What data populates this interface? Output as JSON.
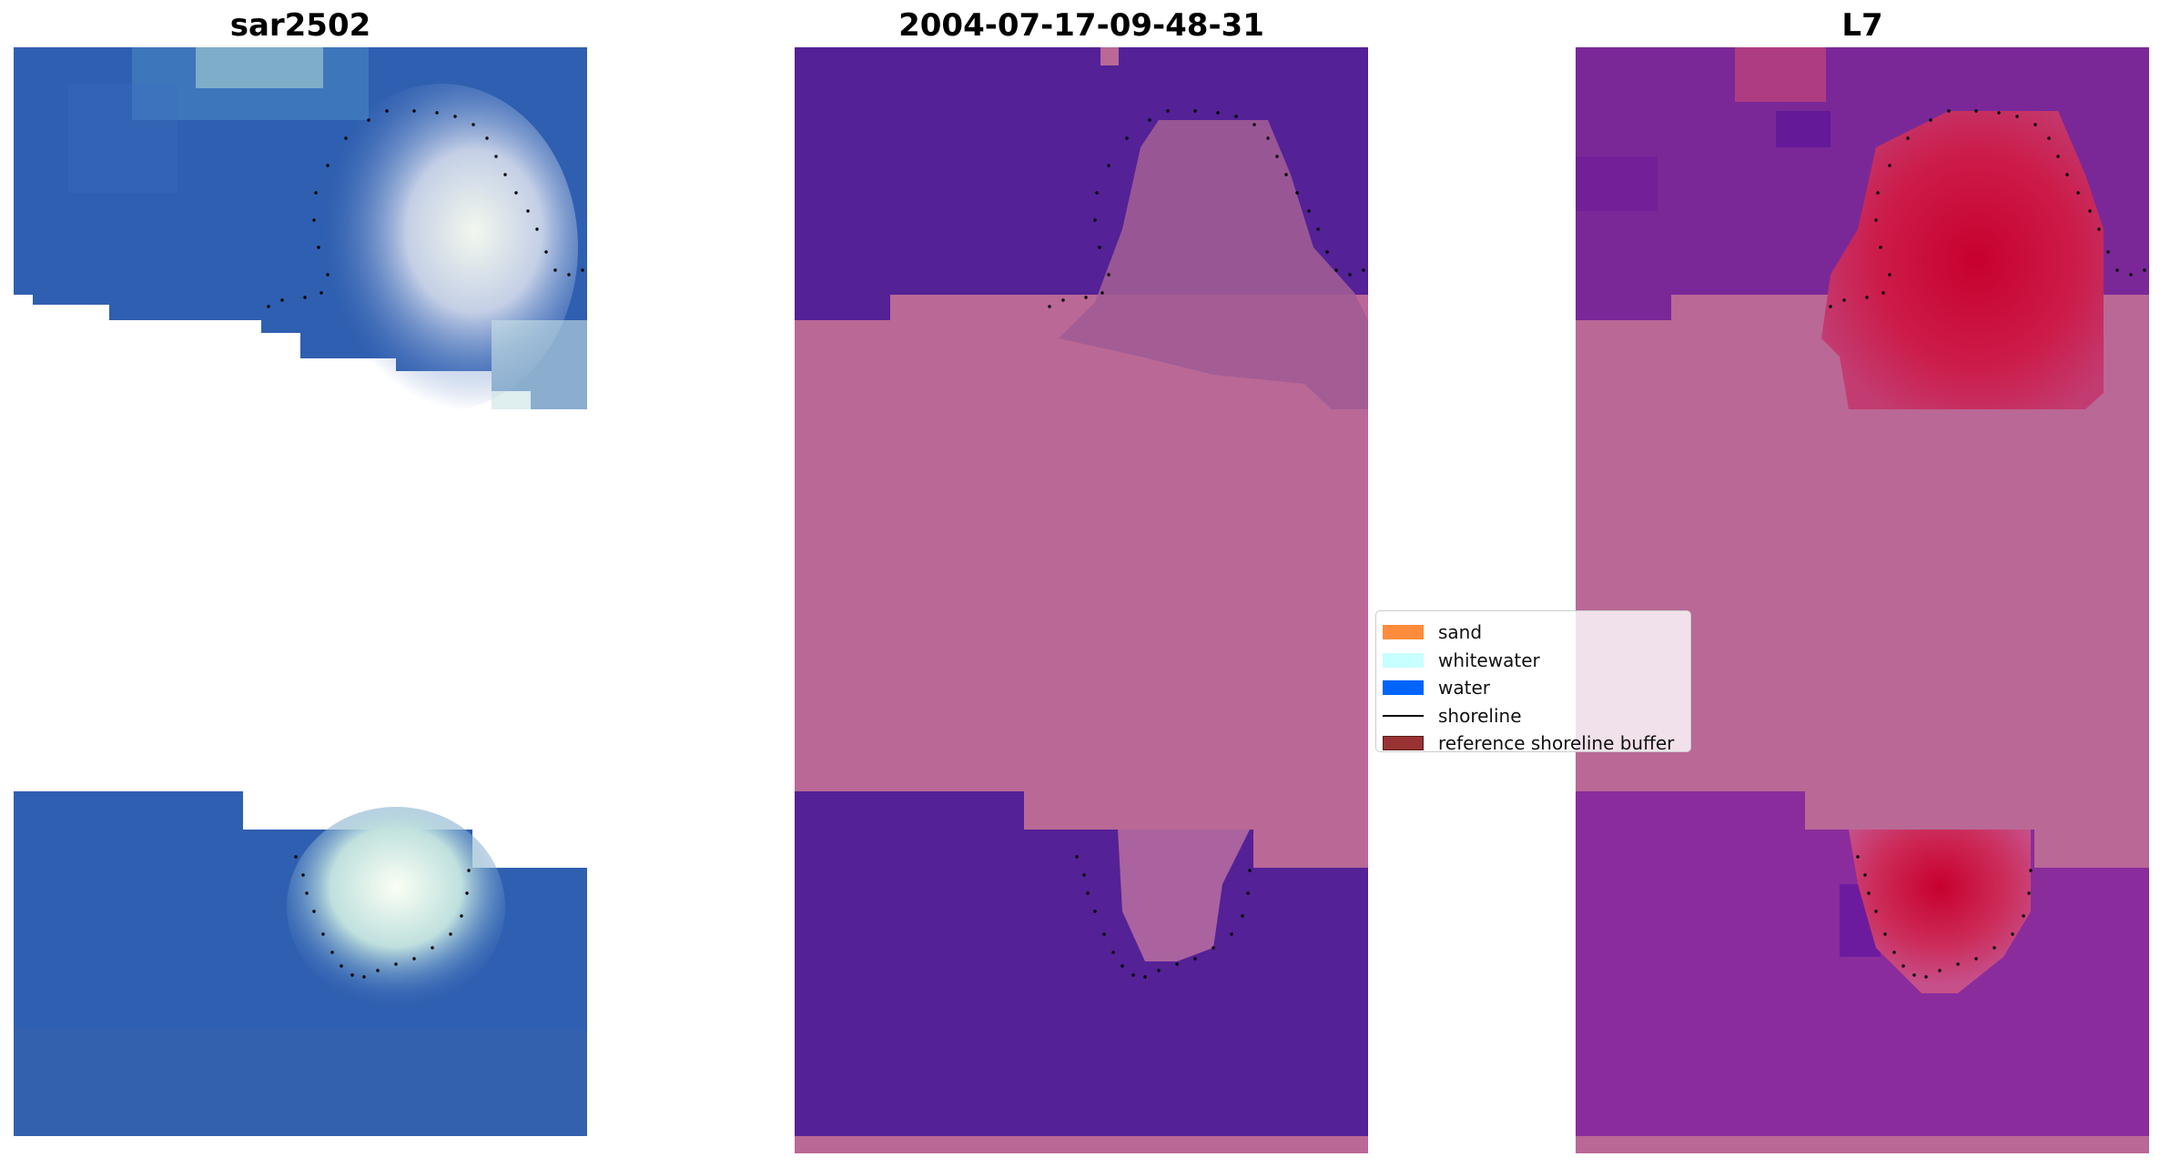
{
  "panels": [
    {
      "title": "sar2502",
      "image_type": "rgb"
    },
    {
      "title": "2004-07-17-09-48-31",
      "image_type": "classified"
    },
    {
      "title": "L7",
      "image_type": "mndwi"
    }
  ],
  "legend": {
    "items": [
      {
        "label": "sand",
        "color": "#ff8c3c",
        "kind": "patch"
      },
      {
        "label": "whitewater",
        "color": "#c8ffff",
        "kind": "patch"
      },
      {
        "label": "water",
        "color": "#0064ff",
        "kind": "patch"
      },
      {
        "label": "shoreline",
        "color": "#000000",
        "kind": "line"
      },
      {
        "label": "reference shoreline buffer",
        "color": "#993333",
        "kind": "patch"
      }
    ]
  },
  "colors": {
    "rgb_water": "#2f60b0",
    "rgb_whitewater": "#dfeef0",
    "classified_water": "#542196",
    "classified_buffer": "#ba6896",
    "mndwi_water": "#7a2898",
    "mndwi_land": "#cc0033",
    "buffer_fill": "#ba6896",
    "shoreline_points": "#000000"
  }
}
